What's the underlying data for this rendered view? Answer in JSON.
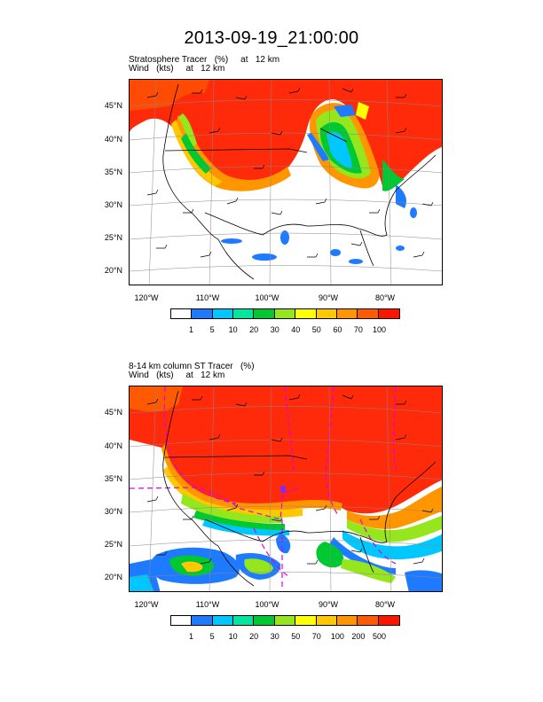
{
  "title": "2013-09-19_21:00:00",
  "panel1": {
    "line1": "Stratosphere Tracer   (%)     at   12 km",
    "line2": "Wind   (kts)     at   12 km",
    "lat_labels": [
      "45°N",
      "40°N",
      "35°N",
      "30°N",
      "25°N",
      "20°N"
    ],
    "lon_labels": [
      "120°W",
      "110°W",
      "100°W",
      "90°W",
      "80°W"
    ],
    "colorbar": {
      "colors": [
        "#ffffff",
        "#1e7bff",
        "#00c8ff",
        "#00e8a0",
        "#00c832",
        "#96e61e",
        "#ffff00",
        "#ffc800",
        "#ff9600",
        "#ff5a00",
        "#ff1400"
      ],
      "labels": [
        "1",
        "5",
        "10",
        "20",
        "30",
        "40",
        "50",
        "60",
        "70",
        "100"
      ]
    }
  },
  "panel2": {
    "line1": "8-14 km column ST Tracer   (%)",
    "line2": "Wind   (kts)     at   12 km",
    "lat_labels": [
      "45°N",
      "40°N",
      "35°N",
      "30°N",
      "25°N",
      "20°N"
    ],
    "lon_labels": [
      "120°W",
      "110°W",
      "100°W",
      "90°W",
      "80°W"
    ],
    "colorbar": {
      "colors": [
        "#ffffff",
        "#1e7bff",
        "#00c8ff",
        "#00e8a0",
        "#00c832",
        "#96e61e",
        "#ffff00",
        "#ffc800",
        "#ff9600",
        "#ff5a00",
        "#ff1400"
      ],
      "labels": [
        "1",
        "5",
        "10",
        "20",
        "30",
        "50",
        "70",
        "100",
        "200",
        "500"
      ]
    }
  }
}
